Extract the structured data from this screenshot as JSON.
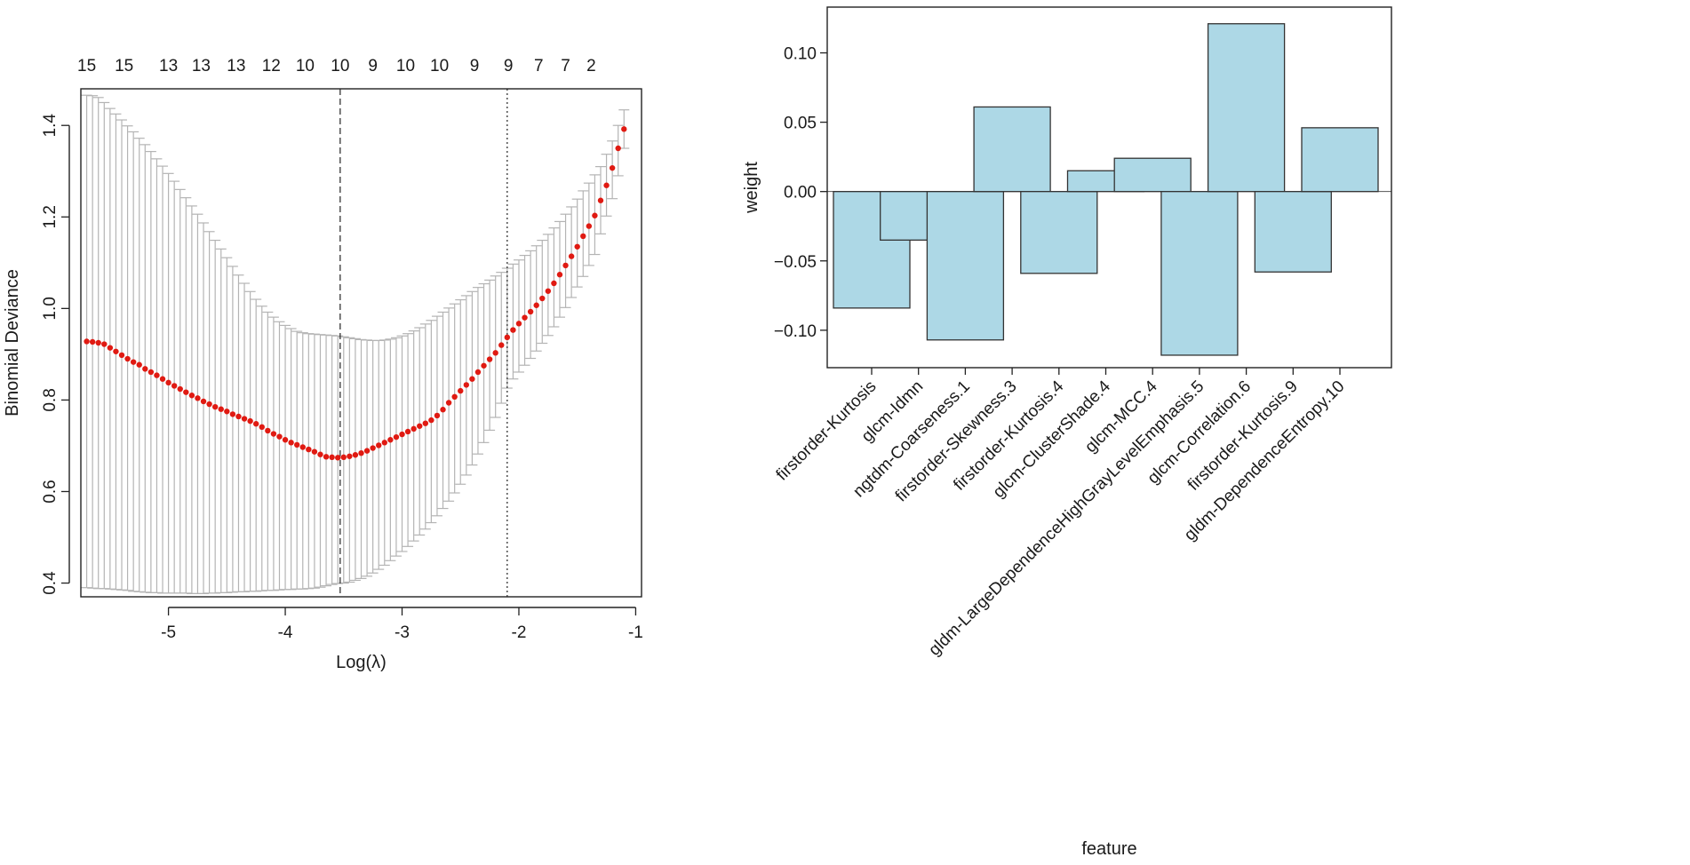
{
  "colors": {
    "points": "#e01a12",
    "error_bars": "#b4b4b4",
    "bars": "#add8e6",
    "bar_edge": "#333333"
  },
  "chart_data": [
    {
      "type": "scatter",
      "title": "",
      "xlabel": "Log(λ)",
      "ylabel": "Binomial Deviance",
      "xlim": [
        -5.75,
        -0.95
      ],
      "ylim": [
        0.37,
        1.48
      ],
      "x_ticks": [
        -5,
        -4,
        -3,
        -2,
        -1
      ],
      "x_tick_labels": [
        "-5",
        "-4",
        "-3",
        "-2",
        "-1"
      ],
      "y_ticks": [
        0.4,
        0.6,
        0.8,
        1.0,
        1.2,
        1.4
      ],
      "y_tick_labels": [
        "0.4",
        "0.6",
        "0.8",
        "1.0",
        "1.2",
        "1.4"
      ],
      "top_axis": {
        "positions": [
          -5.7,
          -5.38,
          -5.0,
          -4.72,
          -4.42,
          -4.12,
          -3.83,
          -3.53,
          -3.25,
          -2.97,
          -2.68,
          -2.38,
          -2.09,
          -1.83,
          -1.6,
          -1.38
        ],
        "labels": [
          "15",
          "15",
          "13",
          "13",
          "13",
          "12",
          "10",
          "10",
          "9",
          "10",
          "10",
          "9",
          "9",
          "7",
          "7",
          "2"
        ]
      },
      "vlines": [
        {
          "x": -3.53,
          "style": "dashed",
          "name": "lambda.min"
        },
        {
          "x": -2.1,
          "style": "dotted",
          "name": "lambda.1se"
        }
      ],
      "x": [
        -5.7,
        -5.65,
        -5.6,
        -5.55,
        -5.5,
        -5.45,
        -5.4,
        -5.35,
        -5.3,
        -5.25,
        -5.2,
        -5.15,
        -5.1,
        -5.05,
        -5.0,
        -4.95,
        -4.9,
        -4.85,
        -4.8,
        -4.75,
        -4.7,
        -4.65,
        -4.6,
        -4.55,
        -4.5,
        -4.45,
        -4.4,
        -4.35,
        -4.3,
        -4.25,
        -4.2,
        -4.15,
        -4.1,
        -4.05,
        -4.0,
        -3.95,
        -3.9,
        -3.85,
        -3.8,
        -3.75,
        -3.7,
        -3.65,
        -3.6,
        -3.55,
        -3.5,
        -3.45,
        -3.4,
        -3.35,
        -3.3,
        -3.25,
        -3.2,
        -3.15,
        -3.1,
        -3.05,
        -3.0,
        -2.95,
        -2.9,
        -2.85,
        -2.8,
        -2.75,
        -2.7,
        -2.65,
        -2.6,
        -2.55,
        -2.5,
        -2.45,
        -2.4,
        -2.35,
        -2.3,
        -2.25,
        -2.2,
        -2.15,
        -2.1,
        -2.05,
        -2.0,
        -1.95,
        -1.9,
        -1.85,
        -1.8,
        -1.75,
        -1.7,
        -1.65,
        -1.6,
        -1.55,
        -1.5,
        -1.45,
        -1.4,
        -1.35,
        -1.3,
        -1.25,
        -1.2,
        -1.15,
        -1.1
      ],
      "y": [
        0.928,
        0.927,
        0.925,
        0.922,
        0.914,
        0.906,
        0.898,
        0.89,
        0.883,
        0.877,
        0.868,
        0.861,
        0.854,
        0.846,
        0.838,
        0.831,
        0.824,
        0.817,
        0.81,
        0.804,
        0.797,
        0.791,
        0.785,
        0.78,
        0.775,
        0.769,
        0.764,
        0.759,
        0.754,
        0.748,
        0.741,
        0.733,
        0.726,
        0.72,
        0.713,
        0.707,
        0.702,
        0.697,
        0.692,
        0.687,
        0.681,
        0.676,
        0.675,
        0.674,
        0.675,
        0.677,
        0.68,
        0.684,
        0.689,
        0.695,
        0.701,
        0.707,
        0.713,
        0.719,
        0.725,
        0.731,
        0.737,
        0.743,
        0.749,
        0.756,
        0.766,
        0.779,
        0.794,
        0.807,
        0.82,
        0.833,
        0.846,
        0.861,
        0.875,
        0.889,
        0.903,
        0.92,
        0.937,
        0.953,
        0.967,
        0.98,
        0.993,
        1.007,
        1.022,
        1.038,
        1.055,
        1.074,
        1.094,
        1.114,
        1.135,
        1.158,
        1.18,
        1.203,
        1.236,
        1.269,
        1.307,
        1.35,
        1.392
      ],
      "lower": [
        0.39,
        0.389,
        0.388,
        0.388,
        0.387,
        0.386,
        0.385,
        0.384,
        0.382,
        0.381,
        0.38,
        0.379,
        0.379,
        0.378,
        0.378,
        0.378,
        0.378,
        0.378,
        0.377,
        0.377,
        0.377,
        0.378,
        0.378,
        0.379,
        0.379,
        0.38,
        0.381,
        0.381,
        0.382,
        0.382,
        0.383,
        0.384,
        0.384,
        0.385,
        0.386,
        0.386,
        0.387,
        0.387,
        0.388,
        0.389,
        0.391,
        0.394,
        0.397,
        0.399,
        0.4,
        0.402,
        0.406,
        0.41,
        0.415,
        0.422,
        0.43,
        0.439,
        0.449,
        0.459,
        0.469,
        0.48,
        0.492,
        0.505,
        0.518,
        0.532,
        0.547,
        0.563,
        0.579,
        0.597,
        0.616,
        0.636,
        0.658,
        0.682,
        0.707,
        0.734,
        0.762,
        0.793,
        0.826,
        0.846,
        0.861,
        0.876,
        0.891,
        0.907,
        0.924,
        0.941,
        0.96,
        0.981,
        1.002,
        1.024,
        1.047,
        1.07,
        1.094,
        1.118,
        1.163,
        1.202,
        1.24,
        1.29,
        1.35
      ],
      "upper": [
        1.466,
        1.465,
        1.461,
        1.45,
        1.437,
        1.425,
        1.412,
        1.399,
        1.386,
        1.372,
        1.358,
        1.343,
        1.327,
        1.311,
        1.295,
        1.278,
        1.26,
        1.242,
        1.224,
        1.206,
        1.187,
        1.168,
        1.149,
        1.13,
        1.111,
        1.092,
        1.073,
        1.055,
        1.037,
        1.02,
        1.005,
        0.992,
        0.981,
        0.971,
        0.963,
        0.956,
        0.95,
        0.947,
        0.945,
        0.944,
        0.943,
        0.942,
        0.941,
        0.94,
        0.938,
        0.936,
        0.934,
        0.932,
        0.931,
        0.93,
        0.93,
        0.931,
        0.933,
        0.936,
        0.94,
        0.945,
        0.951,
        0.958,
        0.966,
        0.974,
        0.983,
        0.992,
        1.001,
        1.01,
        1.019,
        1.028,
        1.037,
        1.046,
        1.054,
        1.062,
        1.071,
        1.079,
        1.088,
        1.097,
        1.106,
        1.116,
        1.126,
        1.137,
        1.149,
        1.162,
        1.176,
        1.19,
        1.206,
        1.222,
        1.239,
        1.257,
        1.274,
        1.292,
        1.31,
        1.337,
        1.366,
        1.4,
        1.434
      ]
    },
    {
      "type": "bar",
      "title": "",
      "xlabel": "feature",
      "ylabel": "weight",
      "ylim": [
        -0.127,
        0.133
      ],
      "y_ticks": [
        -0.1,
        -0.05,
        0.0,
        0.05,
        0.1
      ],
      "y_tick_labels": [
        "−0.10",
        "−0.05",
        "0.00",
        "0.05",
        "0.10"
      ],
      "categories": [
        "firstorder-Kurtosis",
        "glcm-Idmn",
        "ngtdm-Coarseness.1",
        "firstorder-Skewness.3",
        "firstorder-Kurtosis.4",
        "glcm-ClusterShade.4",
        "glcm-MCC.4",
        "gldm-LargeDependenceHighGrayLevelEmphasis.5",
        "glcm-Correlation.6",
        "firstorder-Kurtosis.9",
        "gldm-DependenceEntropy.10"
      ],
      "values": [
        -0.084,
        -0.035,
        -0.107,
        0.061,
        -0.059,
        0.015,
        0.024,
        -0.118,
        0.121,
        -0.058,
        0.046
      ]
    }
  ]
}
